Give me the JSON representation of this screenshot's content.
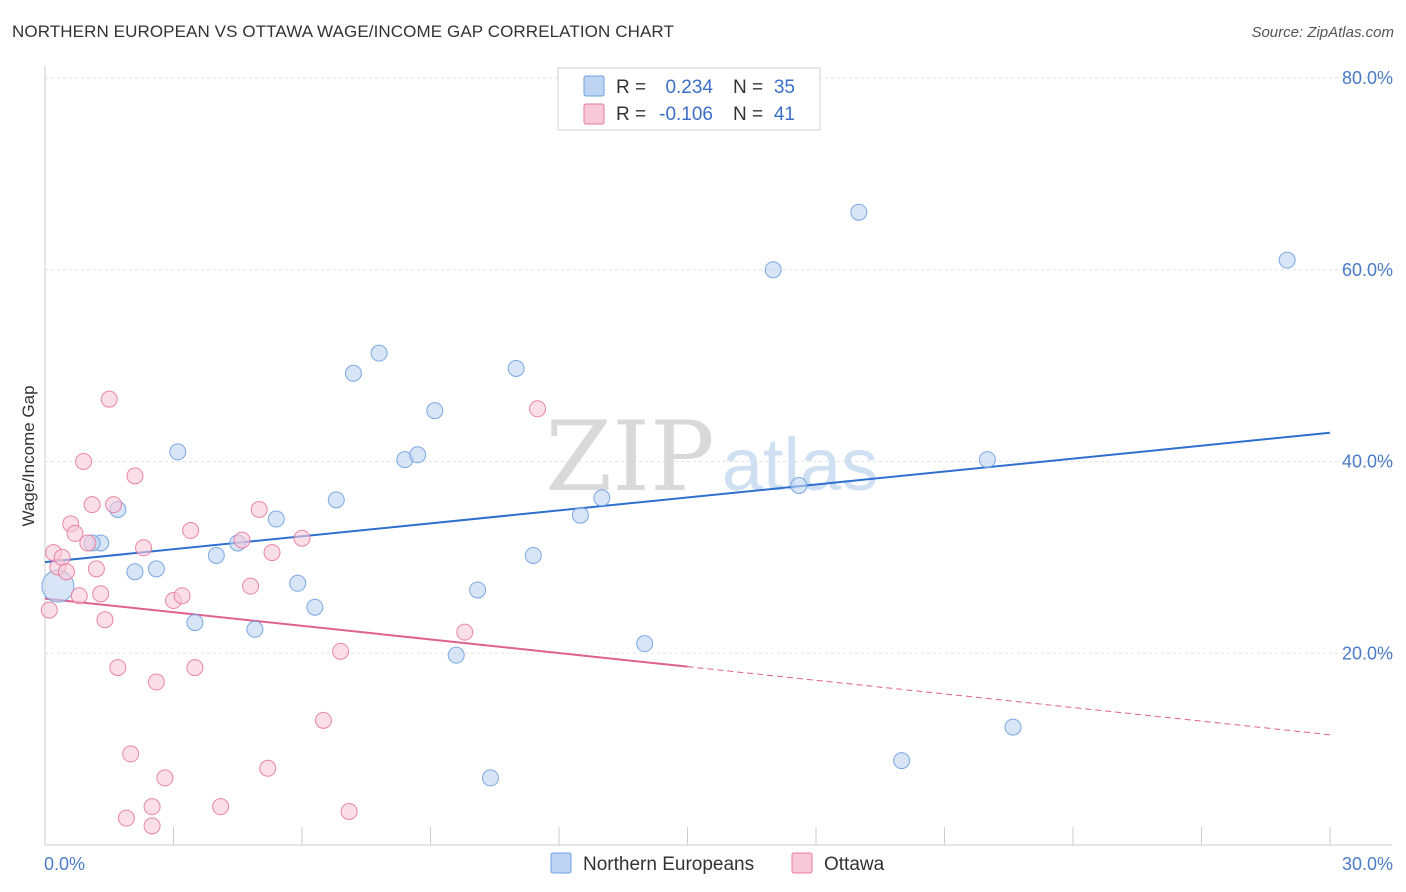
{
  "title": "NORTHERN EUROPEAN VS OTTAWA WAGE/INCOME GAP CORRELATION CHART",
  "source": "Source: ZipAtlas.com",
  "watermark": {
    "zip": "ZIP",
    "atlas": "atlas"
  },
  "chart_data": {
    "type": "scatter",
    "xlabel": "",
    "ylabel": "Wage/Income Gap",
    "xlim": [
      0,
      30
    ],
    "ylim": [
      0,
      80
    ],
    "x_tick_labels": [
      "0.0%",
      "30.0%"
    ],
    "y_ticks": [
      20,
      40,
      60,
      80
    ],
    "y_tick_labels": [
      "20.0%",
      "40.0%",
      "60.0%",
      "80.0%"
    ],
    "legend_position": "top-center",
    "colors": {
      "blue": "#6fa0e0",
      "blue_fill": "#bcd3f2",
      "pink": "#e87aa0",
      "pink_fill": "#f7c8d8",
      "blue_line": "#2f6fcf",
      "pink_line": "#e0608e"
    },
    "series": [
      {
        "name": "Northern Europeans",
        "R_label": "R =",
        "R": "0.234",
        "N_label": "N =",
        "N": "35",
        "trend": {
          "x0": 0,
          "y0": 29.5,
          "x1": 30,
          "y1": 43.0,
          "dashed_from": null
        },
        "points": [
          {
            "x": 0.3,
            "y": 27.0,
            "big": true
          },
          {
            "x": 1.3,
            "y": 31.5
          },
          {
            "x": 1.1,
            "y": 31.5
          },
          {
            "x": 1.7,
            "y": 35.0
          },
          {
            "x": 2.1,
            "y": 28.5
          },
          {
            "x": 2.6,
            "y": 28.8
          },
          {
            "x": 3.1,
            "y": 41.0
          },
          {
            "x": 3.5,
            "y": 23.2
          },
          {
            "x": 4.0,
            "y": 30.2
          },
          {
            "x": 4.5,
            "y": 31.5
          },
          {
            "x": 4.9,
            "y": 22.5
          },
          {
            "x": 5.4,
            "y": 34.0
          },
          {
            "x": 5.9,
            "y": 27.3
          },
          {
            "x": 6.3,
            "y": 24.8
          },
          {
            "x": 6.8,
            "y": 36.0
          },
          {
            "x": 7.2,
            "y": 49.2
          },
          {
            "x": 7.8,
            "y": 51.3
          },
          {
            "x": 8.4,
            "y": 40.2
          },
          {
            "x": 8.7,
            "y": 40.7
          },
          {
            "x": 9.1,
            "y": 45.3
          },
          {
            "x": 9.6,
            "y": 19.8
          },
          {
            "x": 10.1,
            "y": 26.6
          },
          {
            "x": 10.4,
            "y": 7.0
          },
          {
            "x": 11.0,
            "y": 49.7
          },
          {
            "x": 11.4,
            "y": 30.2
          },
          {
            "x": 12.5,
            "y": 34.4
          },
          {
            "x": 13.0,
            "y": 36.2
          },
          {
            "x": 14.0,
            "y": 21.0
          },
          {
            "x": 17.0,
            "y": 60.0
          },
          {
            "x": 17.6,
            "y": 37.5
          },
          {
            "x": 19.0,
            "y": 66.0
          },
          {
            "x": 20.0,
            "y": 8.8
          },
          {
            "x": 22.0,
            "y": 40.2
          },
          {
            "x": 22.6,
            "y": 12.3
          },
          {
            "x": 29.0,
            "y": 61.0
          }
        ]
      },
      {
        "name": "Ottawa",
        "R_label": "R =",
        "R": "-0.106",
        "N_label": "N =",
        "N": "41",
        "trend": {
          "x0": 0,
          "y0": 25.7,
          "x1": 30,
          "y1": 11.5,
          "solid_until": 15.0
        },
        "points": [
          {
            "x": 0.1,
            "y": 24.5
          },
          {
            "x": 0.2,
            "y": 30.5
          },
          {
            "x": 0.3,
            "y": 29.0
          },
          {
            "x": 0.4,
            "y": 30.0
          },
          {
            "x": 0.5,
            "y": 28.5
          },
          {
            "x": 0.6,
            "y": 33.5
          },
          {
            "x": 0.7,
            "y": 32.5
          },
          {
            "x": 0.8,
            "y": 26.0
          },
          {
            "x": 0.9,
            "y": 40.0
          },
          {
            "x": 1.0,
            "y": 31.5
          },
          {
            "x": 1.1,
            "y": 35.5
          },
          {
            "x": 1.2,
            "y": 28.8
          },
          {
            "x": 1.3,
            "y": 26.2
          },
          {
            "x": 1.4,
            "y": 23.5
          },
          {
            "x": 1.5,
            "y": 46.5
          },
          {
            "x": 1.6,
            "y": 35.5
          },
          {
            "x": 1.7,
            "y": 18.5
          },
          {
            "x": 1.9,
            "y": 2.8
          },
          {
            "x": 2.0,
            "y": 9.5
          },
          {
            "x": 2.1,
            "y": 38.5
          },
          {
            "x": 2.3,
            "y": 31.0
          },
          {
            "x": 2.5,
            "y": 4.0
          },
          {
            "x": 2.5,
            "y": 2.0
          },
          {
            "x": 2.6,
            "y": 17.0
          },
          {
            "x": 2.8,
            "y": 7.0
          },
          {
            "x": 3.0,
            "y": 25.5
          },
          {
            "x": 3.2,
            "y": 26.0
          },
          {
            "x": 3.4,
            "y": 32.8
          },
          {
            "x": 3.5,
            "y": 18.5
          },
          {
            "x": 4.1,
            "y": 4.0
          },
          {
            "x": 4.6,
            "y": 31.8
          },
          {
            "x": 4.8,
            "y": 27.0
          },
          {
            "x": 5.0,
            "y": 35.0
          },
          {
            "x": 5.2,
            "y": 8.0
          },
          {
            "x": 5.3,
            "y": 30.5
          },
          {
            "x": 6.0,
            "y": 32.0
          },
          {
            "x": 6.5,
            "y": 13.0
          },
          {
            "x": 6.9,
            "y": 20.2
          },
          {
            "x": 7.1,
            "y": 3.5
          },
          {
            "x": 9.8,
            "y": 22.2
          },
          {
            "x": 11.5,
            "y": 45.5
          }
        ]
      }
    ]
  }
}
